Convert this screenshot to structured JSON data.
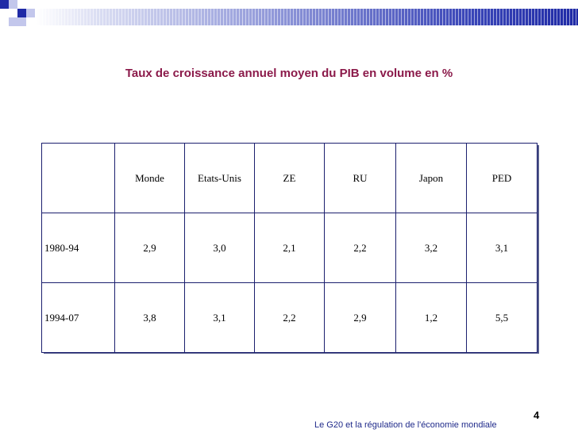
{
  "slide": {
    "title": "Taux de croissance annuel moyen du PIB en volume en %",
    "page_number": "4",
    "footer": "Le G20 et la régulation de l'économie mondiale"
  },
  "table": {
    "headers": [
      "",
      "Monde",
      "Etats-Unis",
      "ZE",
      "RU",
      "Japon",
      "PED"
    ],
    "rows": [
      [
        "1980-94",
        "2,9",
        "3,0",
        "2,1",
        "2,2",
        "3,2",
        "3,1"
      ],
      [
        "1994-07",
        "3,8",
        "3,1",
        "2,2",
        "2,9",
        "1,2",
        "5,5"
      ]
    ]
  },
  "colors": {
    "title": "#8b1a4a",
    "border": "#1b1f6e",
    "accent": "#1f2aa6",
    "decor_light": "#b9bfe9"
  }
}
